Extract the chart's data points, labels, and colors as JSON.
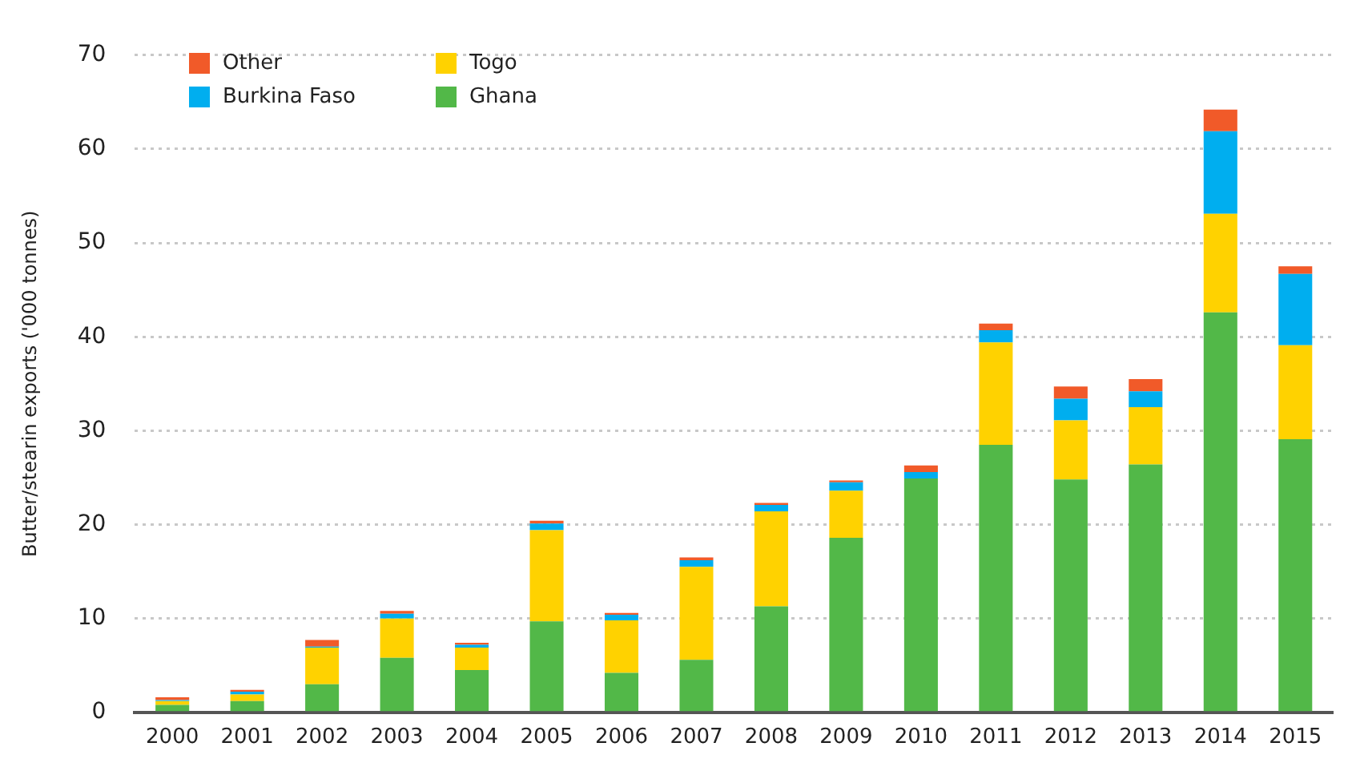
{
  "chart_data": {
    "type": "bar",
    "stacked": true,
    "ylabel": "Butter/stearin exports ('000 tonnes)",
    "categories": [
      "2000",
      "2001",
      "2002",
      "2003",
      "2004",
      "2005",
      "2006",
      "2007",
      "2008",
      "2009",
      "2010",
      "2011",
      "2012",
      "2013",
      "2014",
      "2015"
    ],
    "series": [
      {
        "name": "Ghana",
        "color": "#52b848",
        "values": [
          0.8,
          1.2,
          3.0,
          5.8,
          4.5,
          9.7,
          4.2,
          5.6,
          11.3,
          18.6,
          24.9,
          28.5,
          24.8,
          26.4,
          42.6,
          29.1
        ]
      },
      {
        "name": "Togo",
        "color": "#ffd200",
        "values": [
          0.4,
          0.7,
          3.9,
          4.2,
          2.4,
          9.7,
          5.6,
          9.9,
          10.1,
          5.0,
          0,
          10.9,
          6.3,
          6.1,
          10.5,
          10.0
        ]
      },
      {
        "name": "Burkina Faso",
        "color": "#00aeef",
        "values": [
          0.1,
          0.3,
          0.1,
          0.5,
          0.3,
          0.7,
          0.6,
          0.7,
          0.7,
          0.9,
          0.7,
          1.3,
          2.3,
          1.7,
          8.8,
          7.6
        ]
      },
      {
        "name": "Other",
        "color": "#f15a29",
        "values": [
          0.3,
          0.2,
          0.7,
          0.3,
          0.2,
          0.3,
          0.2,
          0.3,
          0.2,
          0.2,
          0.7,
          0.7,
          1.3,
          1.3,
          2.3,
          0.8
        ]
      }
    ],
    "ylim": [
      0,
      70
    ],
    "yticks": [
      0,
      10,
      20,
      30,
      40,
      50,
      60,
      70
    ],
    "grid": "y",
    "legend": "top left"
  }
}
